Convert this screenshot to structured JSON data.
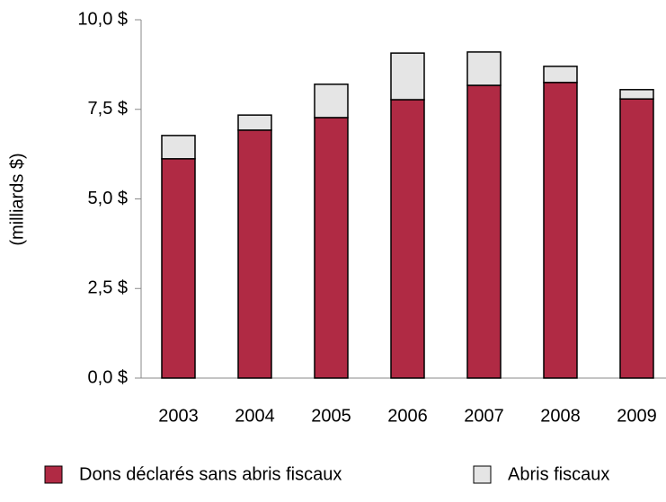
{
  "chart_data": {
    "type": "stacked_bar",
    "y_label": "(milliards $)",
    "categories": [
      "2003",
      "2004",
      "2005",
      "2006",
      "2007",
      "2008",
      "2009"
    ],
    "series": [
      {
        "name": "Dons déclarés sans abris fiscaux",
        "color": "#b02a44",
        "values": [
          6.12,
          6.92,
          7.27,
          7.77,
          8.17,
          8.25,
          7.79
        ]
      },
      {
        "name": "Abris fiscaux",
        "color": "#e5e5e5",
        "values": [
          0.65,
          0.42,
          0.93,
          1.3,
          0.93,
          0.45,
          0.26
        ]
      }
    ],
    "ylim": [
      0,
      10
    ],
    "yticks": [
      {
        "value": 0,
        "label": "0,0 $"
      },
      {
        "value": 2.5,
        "label": "2,5 $"
      },
      {
        "value": 5,
        "label": "5,0 $"
      },
      {
        "value": 7.5,
        "label": "7,5 $"
      },
      {
        "value": 10,
        "label": "10,0 $"
      }
    ],
    "grid": false,
    "legend": "bottom"
  }
}
